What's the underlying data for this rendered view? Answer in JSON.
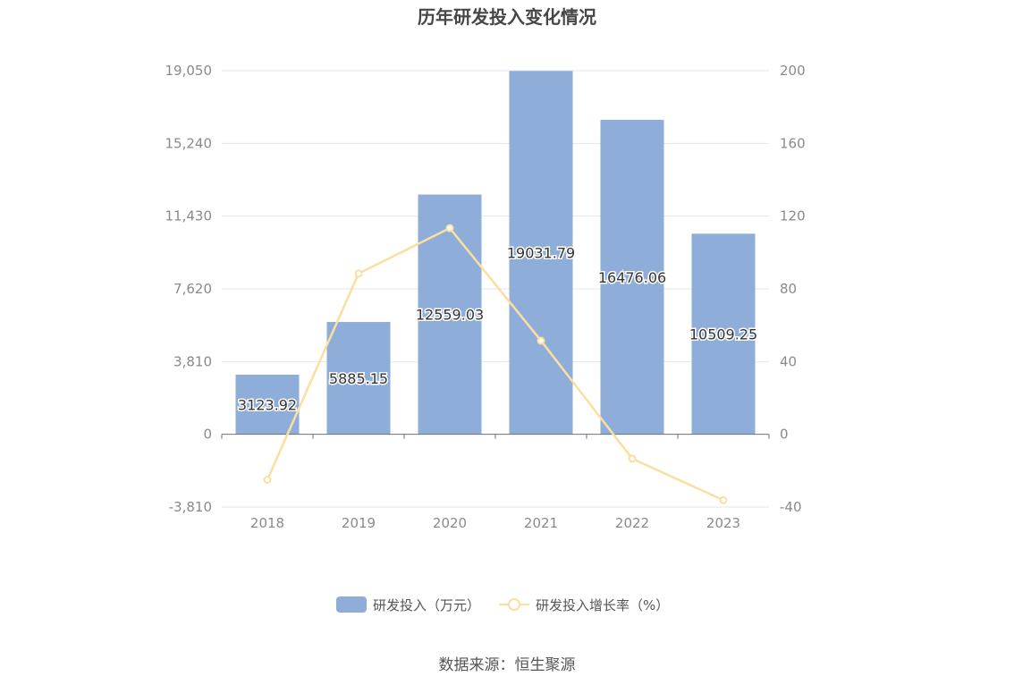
{
  "chart_data": {
    "type": "bar",
    "title": "历年研发投入变化情况",
    "categories": [
      "2018",
      "2019",
      "2020",
      "2021",
      "2022",
      "2023"
    ],
    "series": [
      {
        "name": "研发投入（万元）",
        "type": "bar",
        "axis": "left",
        "values": [
          3123.92,
          5885.15,
          12559.03,
          19031.79,
          16476.06,
          10509.25
        ],
        "labels": [
          "3123.92",
          "5885.15",
          "12559.03",
          "19031.79",
          "16476.06",
          "10509.25"
        ]
      },
      {
        "name": "研发投入增长率（%）",
        "type": "line",
        "axis": "right",
        "values": [
          -25,
          88.4,
          113.4,
          51.5,
          -13.4,
          -36.2
        ]
      }
    ],
    "left_axis": {
      "min": -3810,
      "max": 19050,
      "ticks": [
        "19,050",
        "15,240",
        "11,430",
        "7,620",
        "3,810",
        "0",
        "-3,810"
      ]
    },
    "right_axis": {
      "min": -40,
      "max": 200,
      "ticks": [
        "200",
        "160",
        "120",
        "80",
        "40",
        "0",
        "-40"
      ]
    },
    "grid": true,
    "legend_position": "bottom"
  },
  "colors": {
    "bar": "#8eadd9",
    "line": "#fcdea0",
    "grid": "#e0e6f1",
    "axis_text": "#8a8a8a"
  },
  "source": "数据来源：恒生聚源"
}
